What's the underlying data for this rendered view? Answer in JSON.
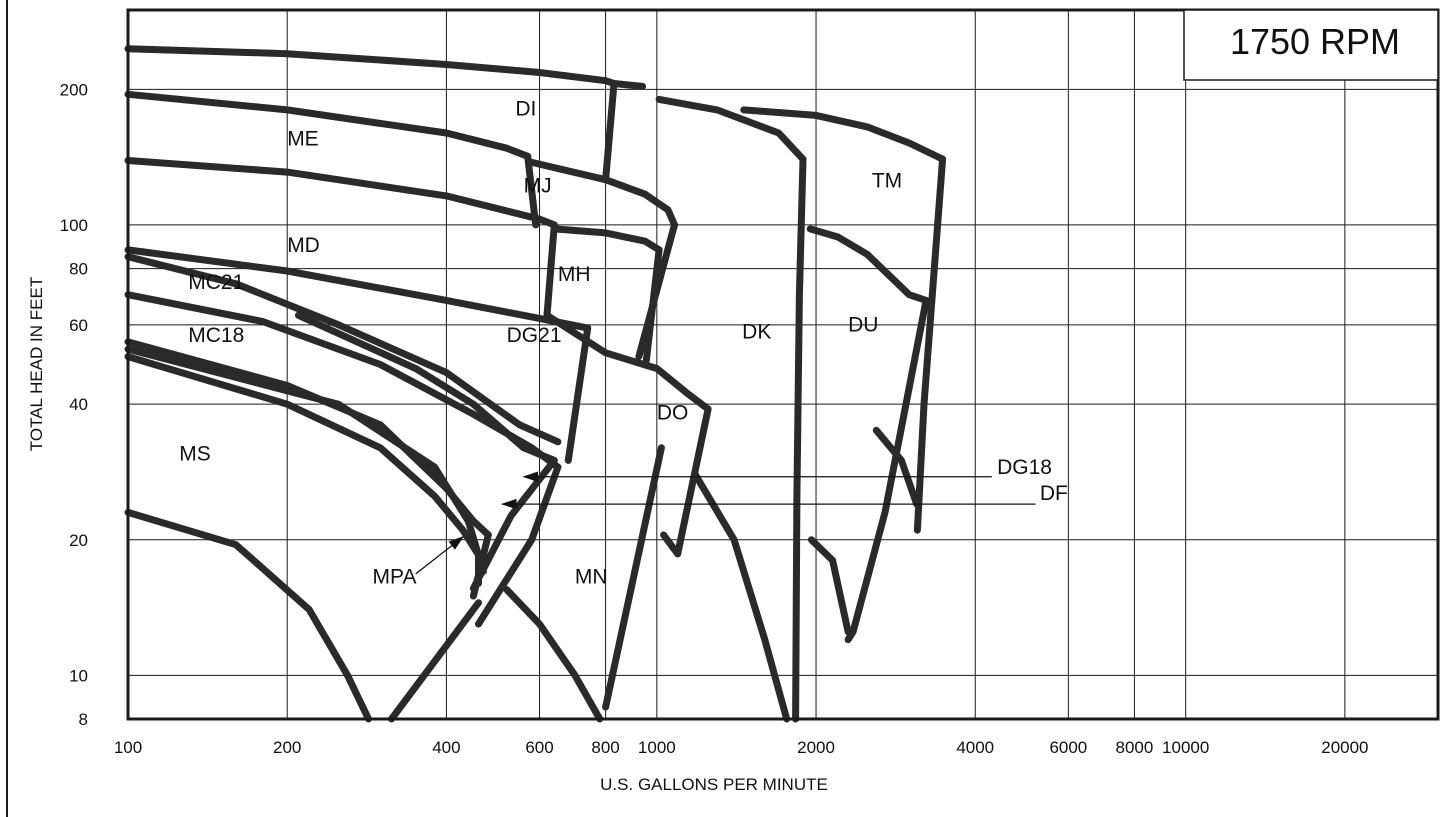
{
  "chart_data": {
    "type": "area",
    "title": "",
    "speed_label": "1750 RPM",
    "xlabel": "U.S. GALLONS PER MINUTE",
    "ylabel": "TOTAL HEAD IN FEET",
    "x_scale": "log",
    "y_scale": "log",
    "xlim": [
      100,
      30000
    ],
    "ylim": [
      8,
      300
    ],
    "x_ticks": [
      100,
      200,
      400,
      600,
      800,
      1000,
      2000,
      4000,
      6000,
      8000,
      10000,
      20000
    ],
    "x_tick_labels": [
      "100",
      "200",
      "400",
      "600",
      "800",
      "1000",
      "2000",
      "4000",
      "6000",
      "8000",
      "10000",
      "20000"
    ],
    "y_ticks": [
      8,
      10,
      20,
      40,
      60,
      80,
      100,
      200
    ],
    "y_tick_labels": [
      "8",
      "10",
      "20",
      "40",
      "60",
      "80",
      "100",
      "200"
    ],
    "grid": true,
    "regions": [
      {
        "name": "DI",
        "label_at": [
          540,
          175
        ]
      },
      {
        "name": "ME",
        "label_at": [
          200,
          150
        ]
      },
      {
        "name": "MJ",
        "label_at": [
          560,
          118
        ]
      },
      {
        "name": "TM",
        "label_at": [
          2550,
          121
        ]
      },
      {
        "name": "MD",
        "label_at": [
          200,
          87
        ]
      },
      {
        "name": "MH",
        "label_at": [
          650,
          75
        ]
      },
      {
        "name": "DK",
        "label_at": [
          1450,
          56
        ]
      },
      {
        "name": "DU",
        "label_at": [
          2300,
          58
        ]
      },
      {
        "name": "MC21",
        "label_at": [
          130,
          72
        ]
      },
      {
        "name": "MC18",
        "label_at": [
          130,
          55
        ]
      },
      {
        "name": "DG21",
        "label_at": [
          520,
          55
        ]
      },
      {
        "name": "DO",
        "label_at": [
          1000,
          37
        ]
      },
      {
        "name": "MS",
        "label_at": [
          125,
          30
        ]
      },
      {
        "name": "MN",
        "label_at": [
          700,
          16
        ]
      },
      {
        "name": "MPA",
        "label_at": [
          290,
          16
        ],
        "pointer": true
      },
      {
        "name": "DG18",
        "label_at": [
          4400,
          28
        ],
        "pointer": true
      },
      {
        "name": "DF",
        "label_at": [
          5300,
          24.5
        ],
        "pointer": true
      }
    ],
    "boundaries": [
      {
        "name": "DI-top",
        "points": [
          [
            100,
            246
          ],
          [
            200,
            240
          ],
          [
            400,
            227
          ],
          [
            600,
            218
          ],
          [
            800,
            209
          ],
          [
            830,
            206
          ],
          [
            940,
            203
          ]
        ]
      },
      {
        "name": "DI-right",
        "points": [
          [
            830,
            206
          ],
          [
            800,
            126
          ]
        ]
      },
      {
        "name": "ME-top",
        "points": [
          [
            100,
            195
          ],
          [
            200,
            180
          ],
          [
            400,
            160
          ],
          [
            520,
            148
          ],
          [
            570,
            142
          ]
        ]
      },
      {
        "name": "ME-right",
        "points": [
          [
            570,
            142
          ],
          [
            590,
            100
          ]
        ]
      },
      {
        "name": "MJ-top",
        "points": [
          [
            575,
            138
          ],
          [
            800,
            126
          ],
          [
            950,
            117
          ],
          [
            1050,
            108
          ],
          [
            1080,
            100
          ]
        ]
      },
      {
        "name": "MJ-right",
        "points": [
          [
            1080,
            100
          ],
          [
            925,
            51
          ]
        ]
      },
      {
        "name": "MD-top",
        "points": [
          [
            100,
            139
          ],
          [
            200,
            131
          ],
          [
            400,
            116
          ],
          [
            600,
            103
          ],
          [
            640,
            100
          ]
        ]
      },
      {
        "name": "MD-right",
        "points": [
          [
            640,
            100
          ],
          [
            620,
            63
          ]
        ]
      },
      {
        "name": "MH-top",
        "points": [
          [
            640,
            98
          ],
          [
            800,
            96
          ],
          [
            950,
            92
          ],
          [
            1010,
            88
          ]
        ]
      },
      {
        "name": "MH-right",
        "points": [
          [
            1010,
            88
          ],
          [
            955,
            50
          ]
        ]
      },
      {
        "name": "DG21-top",
        "points": [
          [
            100,
            88
          ],
          [
            200,
            79
          ],
          [
            400,
            68
          ],
          [
            600,
            62
          ],
          [
            740,
            59
          ]
        ]
      },
      {
        "name": "DG21-right",
        "points": [
          [
            740,
            59
          ],
          [
            680,
            30
          ]
        ]
      },
      {
        "name": "DO-top",
        "points": [
          [
            620,
            63
          ],
          [
            800,
            52
          ],
          [
            1000,
            48
          ],
          [
            1150,
            42
          ],
          [
            1250,
            39
          ]
        ]
      },
      {
        "name": "DO-right",
        "points": [
          [
            1250,
            39
          ],
          [
            1095,
            18.6
          ],
          [
            1030,
            20.5
          ]
        ]
      },
      {
        "name": "DK-top",
        "points": [
          [
            1010,
            190
          ],
          [
            1300,
            180
          ],
          [
            1700,
            160
          ],
          [
            1890,
            140
          ]
        ]
      },
      {
        "name": "DK-right",
        "points": [
          [
            1890,
            140
          ],
          [
            1860,
            70
          ],
          [
            1840,
            25
          ],
          [
            1830,
            8
          ]
        ]
      },
      {
        "name": "DK-bottom",
        "points": [
          [
            1180,
            28
          ],
          [
            1400,
            20
          ],
          [
            1600,
            12
          ],
          [
            1760,
            8
          ]
        ]
      },
      {
        "name": "TM-top",
        "points": [
          [
            1460,
            180
          ],
          [
            2000,
            175
          ],
          [
            2500,
            165
          ],
          [
            3000,
            152
          ],
          [
            3470,
            140
          ]
        ]
      },
      {
        "name": "TM-right",
        "points": [
          [
            3470,
            140
          ],
          [
            3200,
            40
          ],
          [
            3110,
            21
          ]
        ]
      },
      {
        "name": "DU-top",
        "points": [
          [
            1950,
            98
          ],
          [
            2200,
            94
          ],
          [
            2500,
            86
          ],
          [
            3000,
            70
          ],
          [
            3230,
            68
          ]
        ]
      },
      {
        "name": "DU-right",
        "points": [
          [
            3230,
            68
          ],
          [
            2700,
            23
          ],
          [
            2350,
            12.5
          ],
          [
            2300,
            12
          ]
        ]
      },
      {
        "name": "DU-lower",
        "points": [
          [
            1960,
            20
          ],
          [
            2150,
            18
          ],
          [
            2300,
            12.5
          ]
        ]
      },
      {
        "name": "TM-lower",
        "points": [
          [
            2600,
            35
          ],
          [
            2900,
            30
          ],
          [
            3100,
            24
          ]
        ]
      },
      {
        "name": "MC21-top",
        "points": [
          [
            100,
            85
          ],
          [
            160,
            74
          ],
          [
            250,
            60
          ],
          [
            400,
            47
          ],
          [
            550,
            36
          ],
          [
            650,
            33
          ]
        ]
      },
      {
        "name": "MC18-top",
        "points": [
          [
            100,
            70
          ],
          [
            180,
            61
          ],
          [
            300,
            49
          ],
          [
            450,
            38
          ],
          [
            580,
            32
          ],
          [
            650,
            29
          ]
        ]
      },
      {
        "name": "DF-top",
        "points": [
          [
            210,
            63
          ],
          [
            350,
            48
          ],
          [
            450,
            40
          ],
          [
            560,
            32
          ],
          [
            640,
            30
          ]
        ]
      },
      {
        "name": "DF-right",
        "points": [
          [
            640,
            30
          ],
          [
            530,
            22.6
          ],
          [
            450,
            15.6
          ]
        ]
      },
      {
        "name": "DG18-right",
        "points": [
          [
            650,
            29
          ],
          [
            580,
            20
          ],
          [
            460,
            13
          ]
        ]
      },
      {
        "name": "MPA-top",
        "points": [
          [
            100,
            55
          ],
          [
            200,
            44
          ],
          [
            300,
            36
          ],
          [
            400,
            26
          ],
          [
            450,
            22
          ],
          [
            480,
            20.5
          ]
        ]
      },
      {
        "name": "MPA-right",
        "points": [
          [
            480,
            20.5
          ],
          [
            450,
            15
          ]
        ]
      },
      {
        "name": "MS-top",
        "points": [
          [
            100,
            51
          ],
          [
            200,
            40
          ],
          [
            300,
            32
          ],
          [
            380,
            25
          ],
          [
            430,
            21
          ],
          [
            460,
            18.5
          ],
          [
            460,
            16
          ]
        ]
      },
      {
        "name": "MS-bottom",
        "points": [
          [
            100,
            23
          ],
          [
            160,
            19.5
          ],
          [
            220,
            14
          ],
          [
            260,
            10
          ],
          [
            285,
            8
          ]
        ]
      },
      {
        "name": "MN-diag",
        "points": [
          [
            315,
            8
          ],
          [
            460,
            14.5
          ]
        ]
      },
      {
        "name": "MN-top",
        "points": [
          [
            520,
            15.5
          ],
          [
            600,
            13
          ],
          [
            700,
            10
          ],
          [
            780,
            8
          ]
        ]
      },
      {
        "name": "MN-right",
        "points": [
          [
            800,
            8.5
          ],
          [
            1020,
            32
          ]
        ]
      },
      {
        "name": "DF-bottom",
        "points": [
          [
            100,
            53
          ],
          [
            250,
            40
          ],
          [
            380,
            29
          ],
          [
            440,
            22
          ],
          [
            470,
            17
          ]
        ]
      }
    ]
  }
}
